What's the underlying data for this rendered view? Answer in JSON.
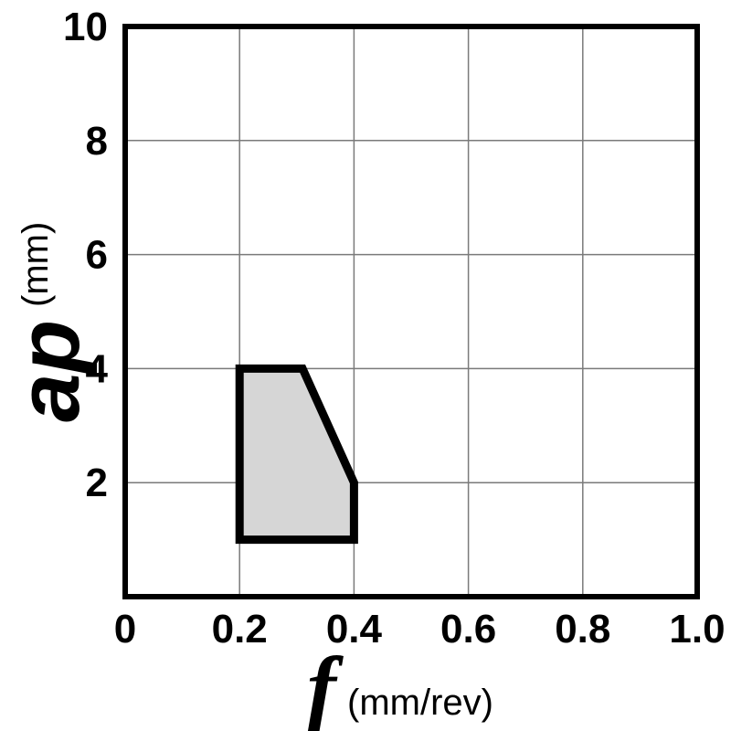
{
  "chart_data": {
    "type": "area",
    "xlabel": {
      "symbol": "f",
      "unit": "(mm/rev)"
    },
    "ylabel": {
      "symbol": "ap",
      "unit": "(mm)"
    },
    "xlim": [
      0,
      1.0
    ],
    "ylim": [
      0,
      10
    ],
    "x_ticks": [
      "0",
      "0.2",
      "0.4",
      "0.6",
      "0.8",
      "1.0"
    ],
    "y_ticks": [
      "2",
      "4",
      "6",
      "8",
      "10"
    ],
    "grid": true,
    "region": {
      "x": [
        0.2,
        0.2,
        0.31,
        0.4,
        0.4
      ],
      "y": [
        1.0,
        4.0,
        4.0,
        2.0,
        1.0
      ]
    },
    "colors": {
      "region_fill": "#d6d6d6",
      "outline": "#000000",
      "grid": "#7a7a7a"
    }
  }
}
